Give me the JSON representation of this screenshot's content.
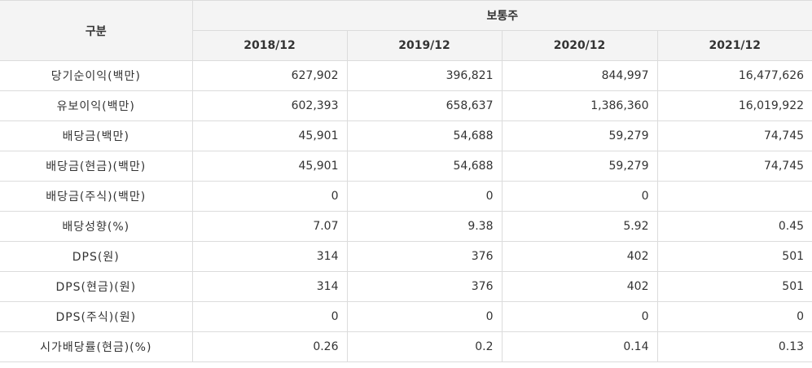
{
  "table": {
    "corner_label": "구분",
    "group_label": "보통주",
    "years": [
      "2018/12",
      "2019/12",
      "2020/12",
      "2021/12"
    ],
    "rows": [
      {
        "label": "당기순이익(백만)",
        "values": [
          "627,902",
          "396,821",
          "844,997",
          "16,477,626"
        ]
      },
      {
        "label": "유보이익(백만)",
        "values": [
          "602,393",
          "658,637",
          "1,386,360",
          "16,019,922"
        ]
      },
      {
        "label": "배당금(백만)",
        "values": [
          "45,901",
          "54,688",
          "59,279",
          "74,745"
        ]
      },
      {
        "label": "배당금(현금)(백만)",
        "values": [
          "45,901",
          "54,688",
          "59,279",
          "74,745"
        ]
      },
      {
        "label": "배당금(주식)(백만)",
        "values": [
          "0",
          "0",
          "0",
          ""
        ]
      },
      {
        "label": "배당성향(%)",
        "values": [
          "7.07",
          "9.38",
          "5.92",
          "0.45"
        ]
      },
      {
        "label": "DPS(원)",
        "values": [
          "314",
          "376",
          "402",
          "501"
        ]
      },
      {
        "label": "DPS(현금)(원)",
        "values": [
          "314",
          "376",
          "402",
          "501"
        ]
      },
      {
        "label": "DPS(주식)(원)",
        "values": [
          "0",
          "0",
          "0",
          "0"
        ]
      },
      {
        "label": "시가배당률(현금)(%)",
        "values": [
          "0.26",
          "0.2",
          "0.14",
          "0.13"
        ]
      }
    ]
  }
}
